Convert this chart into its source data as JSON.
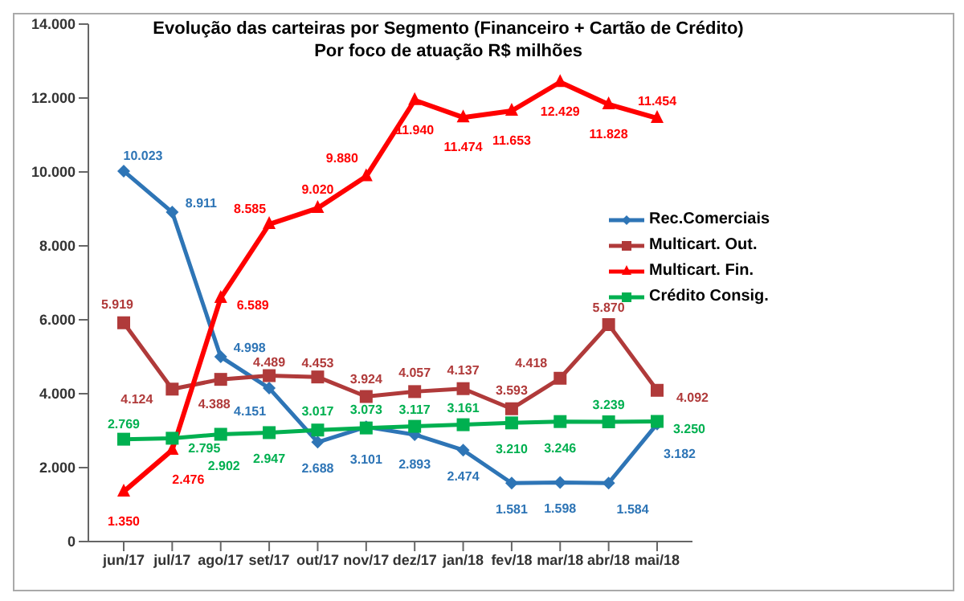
{
  "chart_data": {
    "type": "line",
    "title": "Evolução das carteiras  por Segmento (Financeiro + Cartão de Crédito)",
    "subtitle": "Por foco de atuação R$ milhões",
    "categories": [
      "jun/17",
      "jul/17",
      "ago/17",
      "set/17",
      "out/17",
      "nov/17",
      "dez/17",
      "jan/18",
      "fev/18",
      "mar/18",
      "abr/18",
      "mai/18"
    ],
    "series": [
      {
        "name": "Rec.Comerciais",
        "color": "#2e75b6",
        "marker": "diamond",
        "values": [
          10023,
          8911,
          4998,
          4151,
          2688,
          3101,
          2893,
          2474,
          1581,
          1598,
          1584,
          3182
        ],
        "value_labels": [
          "10.023",
          "8.911",
          "4.998",
          "4.151",
          "2.688",
          "3.101",
          "2.893",
          "2.474",
          "1.581",
          "1.598",
          "1.584",
          "3.182"
        ]
      },
      {
        "name": "Multicart. Out.",
        "color": "#b03a3a",
        "marker": "square",
        "values": [
          5919,
          4124,
          4388,
          4489,
          4453,
          3924,
          4057,
          4137,
          3593,
          4418,
          5870,
          4092
        ],
        "value_labels": [
          "5.919",
          "4.124",
          "4.388",
          "4.489",
          "4.453",
          "3.924",
          "4.057",
          "4.137",
          "3.593",
          "4.418",
          "5.870",
          "4.092"
        ]
      },
      {
        "name": "Multicart. Fin.",
        "color": "#ff0000",
        "marker": "triangle",
        "values": [
          1350,
          2476,
          6589,
          8585,
          9020,
          9880,
          11940,
          11474,
          11653,
          12429,
          11828,
          11454
        ],
        "value_labels": [
          "1.350",
          "2.476",
          "6.589",
          "8.585",
          "9.020",
          "9.880",
          "11.940",
          "11.474",
          "11.653",
          "12.429",
          "11.828",
          "11.454"
        ]
      },
      {
        "name": "Crédito Consig.",
        "color": "#00b050",
        "marker": "square",
        "values": [
          2769,
          2795,
          2902,
          2947,
          3017,
          3073,
          3117,
          3161,
          3210,
          3246,
          3239,
          3250
        ],
        "value_labels": [
          "2.769",
          "2.795",
          "2.902",
          "2.947",
          "3.017",
          "3.073",
          "3.117",
          "3.161",
          "3.210",
          "3.246",
          "3.239",
          "3.250"
        ]
      }
    ],
    "ylim": [
      0,
      14000
    ],
    "yticks": [
      0,
      {
        "value": 2000,
        "label": "2.000"
      },
      {
        "value": 4000,
        "label": "4.000"
      },
      {
        "value": 6000,
        "label": "6.000"
      },
      {
        "value": 8000,
        "label": "8.000"
      },
      {
        "value": 10000,
        "label": "10.000"
      },
      {
        "value": 12000,
        "label": "12.000"
      },
      {
        "value": 14000,
        "label": "14.000"
      }
    ],
    "legend": "right"
  }
}
